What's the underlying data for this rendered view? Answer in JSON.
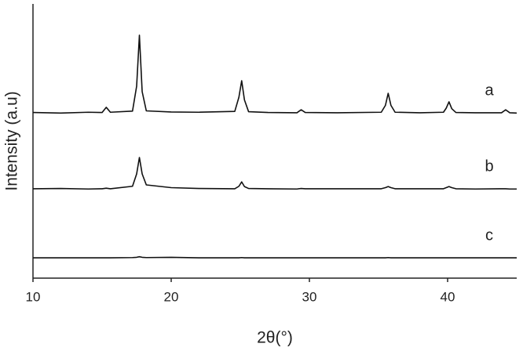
{
  "chart_data": {
    "type": "line",
    "xlabel": "2θ(°)",
    "ylabel": "Intensity (a.u)",
    "x": [
      10,
      12,
      14,
      15.0,
      15.3,
      15.6,
      17.2,
      17.5,
      17.7,
      17.9,
      18.2,
      20,
      22,
      24.6,
      24.9,
      25.1,
      25.3,
      25.6,
      27,
      29.1,
      29.4,
      29.7,
      32,
      35.2,
      35.5,
      35.7,
      35.9,
      36.2,
      38,
      39.7,
      39.9,
      40.1,
      40.3,
      40.6,
      42,
      43.9,
      44.2,
      44.5,
      45
    ],
    "series": [
      {
        "name": "a",
        "color": "#111111",
        "values": [
          60.4,
          60.2,
          60.5,
          60.4,
          62.3,
          60.5,
          60.9,
          70,
          88.6,
          68,
          61,
          60.6,
          60.5,
          60.8,
          66,
          72,
          65,
          60.7,
          60.4,
          60.3,
          61.4,
          60.4,
          60.3,
          60.5,
          63,
          67.4,
          63,
          60.5,
          60.3,
          60.5,
          62,
          64.3,
          61.8,
          60.4,
          60.3,
          60.3,
          61.4,
          60.3,
          60.2
        ]
      },
      {
        "name": "b",
        "color": "#111111",
        "values": [
          32.6,
          32.7,
          32.5,
          32.6,
          32.8,
          32.6,
          33.5,
          38,
          44,
          38,
          34,
          33,
          32.7,
          32.6,
          33.5,
          35.1,
          33.4,
          32.7,
          32.6,
          32.5,
          32.7,
          32.6,
          32.6,
          32.6,
          33,
          33.4,
          33,
          32.6,
          32.6,
          32.6,
          33,
          33.4,
          33,
          32.6,
          32.5,
          32.6,
          32.6,
          32.5,
          32.5
        ]
      },
      {
        "name": "c",
        "color": "#111111",
        "values": [
          7.4,
          7.4,
          7.4,
          7.4,
          7.4,
          7.4,
          7.5,
          7.6,
          7.8,
          7.6,
          7.5,
          7.6,
          7.4,
          7.4,
          7.4,
          7.5,
          7.4,
          7.4,
          7.4,
          7.4,
          7.4,
          7.4,
          7.4,
          7.4,
          7.4,
          7.5,
          7.4,
          7.4,
          7.4,
          7.4,
          7.4,
          7.4,
          7.4,
          7.4,
          7.4,
          7.4,
          7.4,
          7.4,
          7.4
        ]
      }
    ],
    "xlim": [
      10,
      45
    ],
    "xticks": [
      10,
      20,
      30,
      40
    ],
    "ylim": [
      0,
      100
    ]
  }
}
